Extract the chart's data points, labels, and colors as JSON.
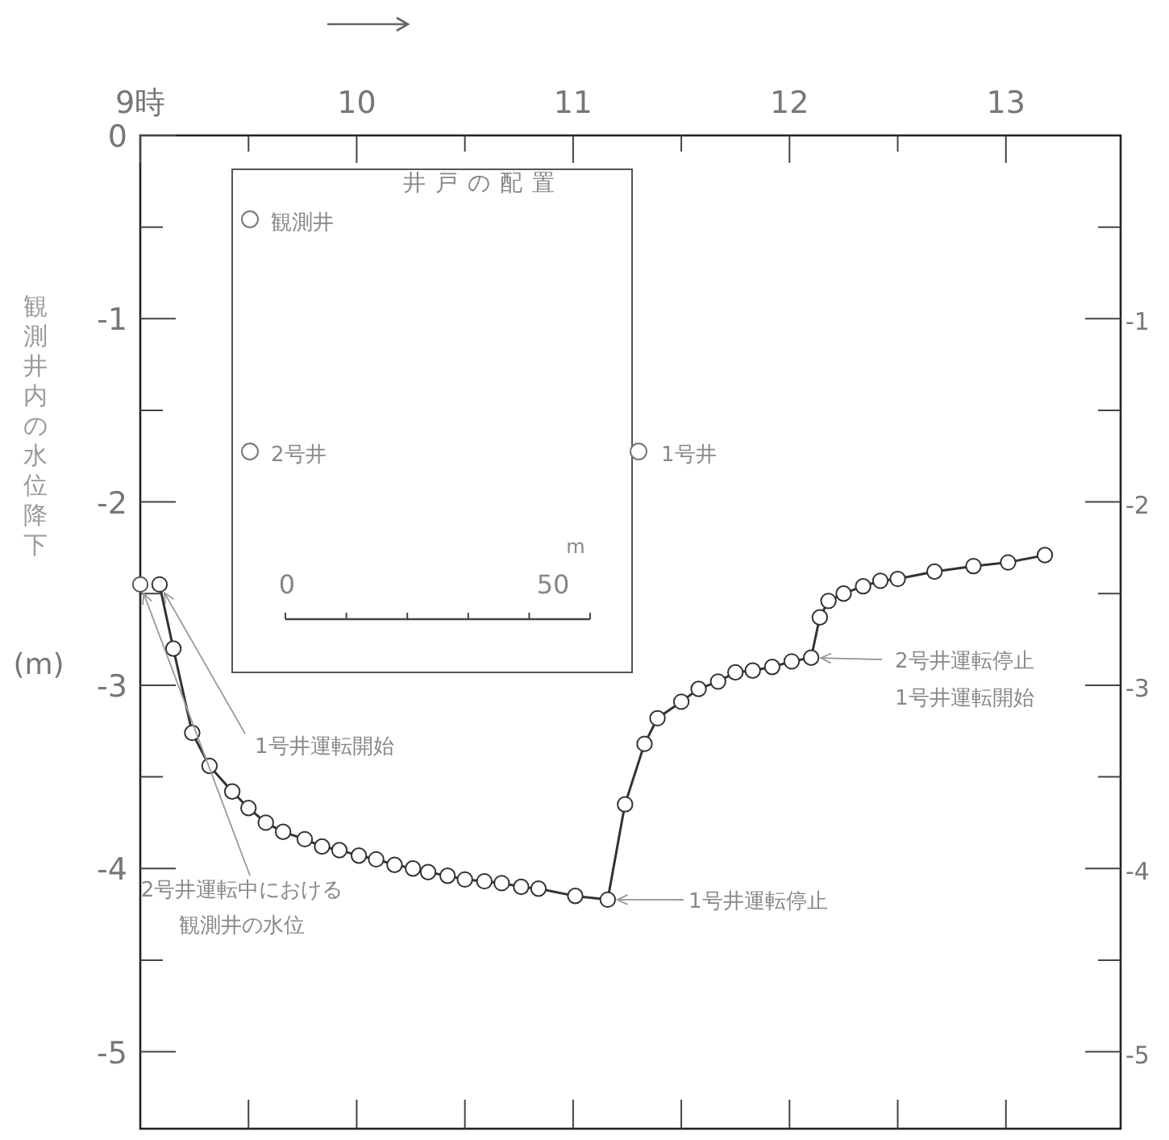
{
  "chart_data": {
    "type": "line",
    "ylabel": "観測井内の水位降下(m)",
    "xlim": [
      9,
      13.53
    ],
    "ylim": [
      -5.42,
      0
    ],
    "y2lim": [
      -5.42,
      0
    ],
    "xticks": [
      {
        "value": 9,
        "label": "9時"
      },
      {
        "value": 9.5,
        "label": null
      },
      10,
      {
        "value": 10.5,
        "label": null
      },
      11,
      {
        "value": 11.5,
        "label": null
      },
      12,
      {
        "value": 12.5,
        "label": null
      },
      13
    ],
    "yticks": [
      0,
      {
        "value": -0.5,
        "label": null
      },
      -1,
      {
        "value": -1.5,
        "label": null
      },
      -2,
      {
        "value": -2.5,
        "label": null
      },
      -3,
      {
        "value": -3.5,
        "label": null
      },
      -4,
      {
        "value": -4.5,
        "label": null
      },
      -5
    ],
    "y2ticks": [
      {
        "value": -0.5,
        "label": null
      },
      -1,
      {
        "value": -1.5,
        "label": null
      },
      -2,
      {
        "value": -2.5,
        "label": null
      },
      -3,
      {
        "value": -3.5,
        "label": null
      },
      -4,
      {
        "value": -4.5,
        "label": null
      },
      -5
    ],
    "marker": "circle",
    "line_style": "solid",
    "grid": false,
    "series": [
      {
        "type": "scatter",
        "color": "#555555",
        "x": [
          9.0
        ],
        "values": [
          -2.45
        ]
      },
      {
        "color": "#333333",
        "x": [
          9.089,
          9.153,
          9.24,
          9.32,
          9.425,
          9.5,
          9.58,
          9.66,
          9.76,
          9.84,
          9.92,
          10.01,
          10.09,
          10.175,
          10.26,
          10.33,
          10.42,
          10.5,
          10.59,
          10.67,
          10.76,
          10.84,
          11.01,
          11.16,
          11.24,
          11.33,
          11.39,
          11.5,
          11.58,
          11.67,
          11.75,
          11.83,
          11.92,
          12.01,
          12.1,
          12.14,
          12.18,
          12.25,
          12.34,
          12.42,
          12.5,
          12.67,
          12.85,
          13.01,
          13.18
        ],
        "values": [
          -2.45,
          -2.8,
          -3.26,
          -3.44,
          -3.58,
          -3.67,
          -3.75,
          -3.8,
          -3.84,
          -3.88,
          -3.9,
          -3.93,
          -3.95,
          -3.98,
          -4.0,
          -4.02,
          -4.04,
          -4.06,
          -4.07,
          -4.08,
          -4.1,
          -4.11,
          -4.15,
          -4.17,
          -3.65,
          -3.32,
          -3.18,
          -3.09,
          -3.02,
          -2.98,
          -2.93,
          -2.92,
          -2.9,
          -2.87,
          -2.85,
          -2.63,
          -2.54,
          -2.5,
          -2.46,
          -2.43,
          -2.42,
          -2.38,
          -2.35,
          -2.33,
          -2.29
        ]
      }
    ],
    "annotations": [
      {
        "text": "1号井運転開始",
        "x": 9.089,
        "y": -2.45
      },
      {
        "text": "2号井運転中における観測井の水位",
        "x": 9.0,
        "y": -2.45
      },
      {
        "text": "1号井運転停止",
        "x": 11.16,
        "y": -4.17
      },
      {
        "text": "2号井運転停止",
        "x": 12.1,
        "y": -2.85
      },
      "1号井運転開始",
      "井戸の配置",
      "観測井",
      "2号井",
      "1号井",
      "0",
      "50",
      "m"
    ]
  }
}
